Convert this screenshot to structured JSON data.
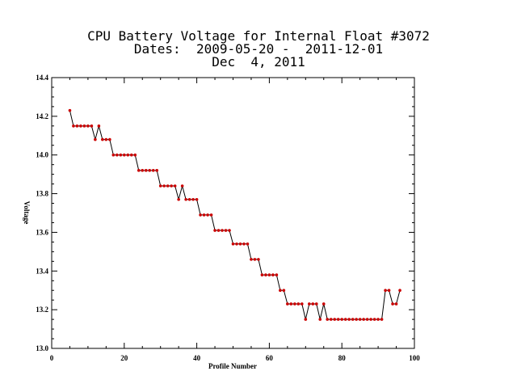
{
  "chart_data": {
    "type": "line",
    "title_lines": [
      "CPU Battery Voltage for Internal Float #3072",
      "Dates:  2009-05-20 -  2011-12-01",
      "Dec  4, 2011"
    ],
    "xlabel": "Profile Number",
    "ylabel": "Voltage",
    "xlim": [
      0,
      100
    ],
    "ylim": [
      13.0,
      14.4
    ],
    "x_ticks": [
      0,
      20,
      40,
      60,
      80,
      100
    ],
    "x_tick_labels": [
      "0",
      "20",
      "40",
      "60",
      "80",
      "100"
    ],
    "y_ticks": [
      13.0,
      13.2,
      13.4,
      13.6,
      13.8,
      14.0,
      14.2,
      14.4
    ],
    "y_tick_labels": [
      "13.0",
      "13.2",
      "13.4",
      "13.6",
      "13.8",
      "14.0",
      "14.2",
      "14.4"
    ],
    "line_color": "#000000",
    "marker_color": "#cc0000",
    "grid": false,
    "series": [
      {
        "x": [
          5,
          6,
          7,
          8,
          9,
          10,
          11,
          12,
          13,
          14,
          15,
          16,
          17,
          18,
          19,
          20,
          21,
          22,
          23,
          24,
          25,
          26,
          27,
          28,
          29,
          30,
          31,
          32,
          33,
          34,
          35,
          36,
          37,
          38,
          39,
          40,
          41,
          42,
          43,
          44,
          45,
          46,
          47,
          48,
          49,
          50,
          51,
          52,
          53,
          54,
          55,
          56,
          57,
          58,
          59,
          60,
          61,
          62,
          63,
          64,
          65,
          66,
          67,
          68,
          69,
          70,
          71,
          72,
          73,
          74,
          75,
          76,
          77,
          78,
          79,
          80,
          81,
          82,
          83,
          84,
          85,
          86,
          87,
          88,
          89,
          90,
          91,
          92,
          93,
          94,
          95,
          96
        ],
        "y": [
          14.23,
          14.15,
          14.15,
          14.15,
          14.15,
          14.15,
          14.15,
          14.08,
          14.15,
          14.08,
          14.08,
          14.08,
          14.0,
          14.0,
          14.0,
          14.0,
          14.0,
          14.0,
          14.0,
          13.92,
          13.92,
          13.92,
          13.92,
          13.92,
          13.92,
          13.84,
          13.84,
          13.84,
          13.84,
          13.84,
          13.77,
          13.84,
          13.77,
          13.77,
          13.77,
          13.77,
          13.69,
          13.69,
          13.69,
          13.69,
          13.61,
          13.61,
          13.61,
          13.61,
          13.61,
          13.54,
          13.54,
          13.54,
          13.54,
          13.54,
          13.46,
          13.46,
          13.46,
          13.38,
          13.38,
          13.38,
          13.38,
          13.38,
          13.3,
          13.3,
          13.23,
          13.23,
          13.23,
          13.23,
          13.23,
          13.15,
          13.23,
          13.23,
          13.23,
          13.15,
          13.23,
          13.15,
          13.15,
          13.15,
          13.15,
          13.15,
          13.15,
          13.15,
          13.15,
          13.15,
          13.15,
          13.15,
          13.15,
          13.15,
          13.15,
          13.15,
          13.15,
          13.3,
          13.3,
          13.23,
          13.23,
          13.3
        ]
      }
    ]
  }
}
